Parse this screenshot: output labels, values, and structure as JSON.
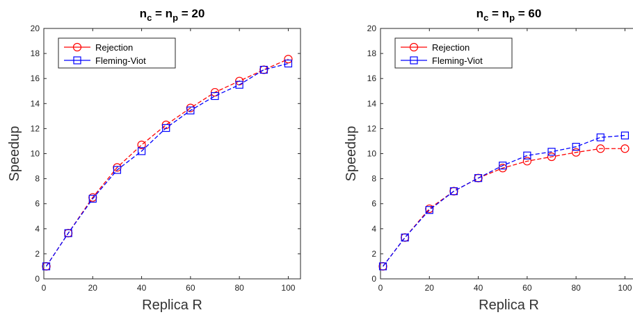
{
  "chart_data": [
    {
      "type": "line",
      "title": "n_c = n_p = 20",
      "title_parts": {
        "n1": "n",
        "s1": "c",
        "eq1": " = ",
        "n2": "n",
        "s2": "p",
        "rest": " = 20"
      },
      "xlabel": "Replica R",
      "ylabel": "Speedup",
      "xlim": [
        0,
        105
      ],
      "ylim": [
        0,
        20
      ],
      "xticks": [
        0,
        20,
        40,
        60,
        80,
        100
      ],
      "yticks": [
        0,
        2,
        4,
        6,
        8,
        10,
        12,
        14,
        16,
        18,
        20
      ],
      "grid": false,
      "legend_position": "top-left",
      "x": [
        1,
        10,
        20,
        30,
        40,
        50,
        60,
        70,
        80,
        90,
        100
      ],
      "series": [
        {
          "name": "Rejection",
          "color": "#ff0000",
          "marker": "circle",
          "values": [
            1.0,
            3.65,
            6.5,
            8.9,
            10.7,
            12.3,
            13.65,
            14.9,
            15.8,
            16.7,
            17.55
          ]
        },
        {
          "name": "Fleming-Viot",
          "color": "#0000ff",
          "marker": "square",
          "values": [
            1.0,
            3.65,
            6.4,
            8.7,
            10.2,
            12.05,
            13.45,
            14.6,
            15.5,
            16.7,
            17.2
          ]
        }
      ]
    },
    {
      "type": "line",
      "title": "n_c = n_p = 60",
      "title_parts": {
        "n1": "n",
        "s1": "c",
        "eq1": " = ",
        "n2": "n",
        "s2": "p",
        "rest": " = 60"
      },
      "xlabel": "Replica R",
      "ylabel": "Speedup",
      "xlim": [
        0,
        105
      ],
      "ylim": [
        0,
        20
      ],
      "xticks": [
        0,
        20,
        40,
        60,
        80,
        100
      ],
      "yticks": [
        0,
        2,
        4,
        6,
        8,
        10,
        12,
        14,
        16,
        18,
        20
      ],
      "grid": false,
      "legend_position": "top-left",
      "x": [
        1,
        10,
        20,
        30,
        40,
        50,
        60,
        70,
        80,
        90,
        100
      ],
      "series": [
        {
          "name": "Rejection",
          "color": "#ff0000",
          "marker": "circle",
          "values": [
            1.0,
            3.3,
            5.6,
            7.0,
            8.05,
            8.85,
            9.4,
            9.75,
            10.1,
            10.4,
            10.4
          ]
        },
        {
          "name": "Fleming-Viot",
          "color": "#0000ff",
          "marker": "square",
          "values": [
            1.0,
            3.3,
            5.5,
            7.0,
            8.05,
            9.05,
            9.85,
            10.15,
            10.55,
            11.3,
            11.45
          ]
        }
      ]
    }
  ]
}
